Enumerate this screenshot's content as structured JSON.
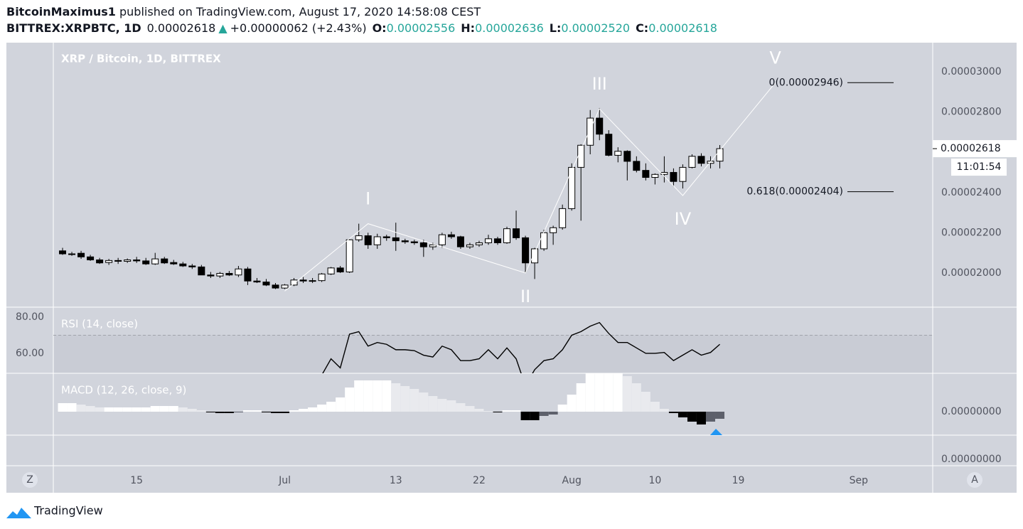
{
  "header": {
    "author": "BitcoinMaximus1",
    "published": " published on TradingView.com, August 17, 2020 14:58:08 CEST",
    "symbol": "BITTREX:XRPBTC, 1D",
    "last": "0.00002618",
    "arrow": "▲",
    "change": "+0.00000062 (+2.43%)",
    "ohlc": [
      {
        "key": "O:",
        "value": "0.00002556"
      },
      {
        "key": "H:",
        "value": "0.00002636"
      },
      {
        "key": "L:",
        "value": "0.00002520"
      },
      {
        "key": "C:",
        "value": "0.00002618"
      }
    ]
  },
  "ui": {
    "left_button": "Z",
    "right_button": "A",
    "brand": "TradingView"
  },
  "chart_data": {
    "type": "candlestick",
    "title": "XRP / Bitcoin, 1D, BITTREX",
    "x": [
      "2020-06-07",
      "2020-06-08",
      "2020-06-09",
      "2020-06-10",
      "2020-06-11",
      "2020-06-12",
      "2020-06-13",
      "2020-06-14",
      "2020-06-15",
      "2020-06-16",
      "2020-06-17",
      "2020-06-18",
      "2020-06-19",
      "2020-06-20",
      "2020-06-21",
      "2020-06-22",
      "2020-06-23",
      "2020-06-24",
      "2020-06-25",
      "2020-06-26",
      "2020-06-27",
      "2020-06-28",
      "2020-06-29",
      "2020-06-30",
      "2020-07-01",
      "2020-07-02",
      "2020-07-03",
      "2020-07-04",
      "2020-07-05",
      "2020-07-06",
      "2020-07-07",
      "2020-07-08",
      "2020-07-09",
      "2020-07-10",
      "2020-07-11",
      "2020-07-12",
      "2020-07-13",
      "2020-07-14",
      "2020-07-15",
      "2020-07-16",
      "2020-07-17",
      "2020-07-18",
      "2020-07-19",
      "2020-07-20",
      "2020-07-21",
      "2020-07-22",
      "2020-07-23",
      "2020-07-24",
      "2020-07-25",
      "2020-07-26",
      "2020-07-27",
      "2020-07-28",
      "2020-07-29",
      "2020-07-30",
      "2020-07-31",
      "2020-08-01",
      "2020-08-02",
      "2020-08-03",
      "2020-08-04",
      "2020-08-05",
      "2020-08-06",
      "2020-08-07",
      "2020-08-08",
      "2020-08-09",
      "2020-08-10",
      "2020-08-11",
      "2020-08-12",
      "2020-08-13",
      "2020-08-14",
      "2020-08-15",
      "2020-08-16",
      "2020-08-17"
    ],
    "open": [
      2.11e-05,
      2.095e-05,
      2.098e-05,
      2.08e-05,
      2.065e-05,
      2.052e-05,
      2.062e-05,
      2.058e-05,
      2.065e-05,
      2.06e-05,
      2.045e-05,
      2.07e-05,
      2.052e-05,
      2.045e-05,
      2.035e-05,
      2.03e-05,
      1.99e-05,
      1.985e-05,
      1.998e-05,
      1.99e-05,
      2.02e-05,
      1.96e-05,
      1.955e-05,
      1.94e-05,
      1.925e-05,
      1.94e-05,
      1.965e-05,
      1.96e-05,
      1.962e-05,
      1.995e-05,
      2.025e-05,
      2.005e-05,
      2.165e-05,
      2.185e-05,
      2.14e-05,
      2.18e-05,
      2.175e-05,
      2.16e-05,
      2.155e-05,
      2.15e-05,
      2.13e-05,
      2.14e-05,
      2.19e-05,
      2.18e-05,
      2.13e-05,
      2.14e-05,
      2.15e-05,
      2.17e-05,
      2.15e-05,
      2.22e-05,
      2.175e-05,
      2.05e-05,
      2.12e-05,
      2.2e-05,
      2.225e-05,
      2.32e-05,
      2.525e-05,
      2.635e-05,
      2.77e-05,
      2.69e-05,
      2.585e-05,
      2.605e-05,
      2.555e-05,
      2.51e-05,
      2.475e-05,
      2.49e-05,
      2.5e-05,
      2.455e-05,
      2.525e-05,
      2.58e-05,
      2.545e-05,
      2.556e-05
    ],
    "high": [
      2.125e-05,
      2.105e-05,
      2.11e-05,
      2.09e-05,
      2.075e-05,
      2.07e-05,
      2.075e-05,
      2.072e-05,
      2.08e-05,
      2.075e-05,
      2.1e-05,
      2.08e-05,
      2.065e-05,
      2.055e-05,
      2.045e-05,
      2.04e-05,
      2.005e-05,
      2.005e-05,
      2.01e-05,
      2.035e-05,
      2.03e-05,
      1.975e-05,
      1.97e-05,
      1.95e-05,
      1.945e-05,
      1.975e-05,
      1.98e-05,
      1.975e-05,
      2e-05,
      2.03e-05,
      2.035e-05,
      2.17e-05,
      2.245e-05,
      2.2e-05,
      2.195e-05,
      2.19e-05,
      2.25e-05,
      2.17e-05,
      2.165e-05,
      2.165e-05,
      2.15e-05,
      2.2e-05,
      2.205e-05,
      2.185e-05,
      2.15e-05,
      2.16e-05,
      2.19e-05,
      2.18e-05,
      2.23e-05,
      2.31e-05,
      2.185e-05,
      2.125e-05,
      2.215e-05,
      2.235e-05,
      2.34e-05,
      2.545e-05,
      2.64e-05,
      2.81e-05,
      2.82e-05,
      2.71e-05,
      2.625e-05,
      2.61e-05,
      2.58e-05,
      2.545e-05,
      2.495e-05,
      2.58e-05,
      2.52e-05,
      2.54e-05,
      2.59e-05,
      2.595e-05,
      2.58e-05,
      2.636e-05
    ],
    "low": [
      2.09e-05,
      2.085e-05,
      2.07e-05,
      2.06e-05,
      2.045e-05,
      2.04e-05,
      2.045e-05,
      2.05e-05,
      2.05e-05,
      2.04e-05,
      2.04e-05,
      2.045e-05,
      2.04e-05,
      2.03e-05,
      2.02e-05,
      1.99e-05,
      1.975e-05,
      1.975e-05,
      1.985e-05,
      1.98e-05,
      1.94e-05,
      1.95e-05,
      1.935e-05,
      1.92e-05,
      1.92e-05,
      1.935e-05,
      1.95e-05,
      1.95e-05,
      1.955e-05,
      1.99e-05,
      2e-05,
      2e-05,
      2.155e-05,
      2.12e-05,
      2.12e-05,
      2.16e-05,
      2.11e-05,
      2.145e-05,
      2.14e-05,
      2.08e-05,
      2.115e-05,
      2.125e-05,
      2.17e-05,
      2.12e-05,
      2.12e-05,
      2.13e-05,
      2.14e-05,
      2.14e-05,
      2.145e-05,
      2.165e-05,
      2e-05,
      1.97e-05,
      2.11e-05,
      2.14e-05,
      2.215e-05,
      2.31e-05,
      2.26e-05,
      2.59e-05,
      2.66e-05,
      2.58e-05,
      2.55e-05,
      2.46e-05,
      2.5e-05,
      2.46e-05,
      2.44e-05,
      2.45e-05,
      2.43e-05,
      2.42e-05,
      2.52e-05,
      2.53e-05,
      2.52e-05,
      2.52e-05
    ],
    "close": [
      2.095e-05,
      2.092e-05,
      2.08e-05,
      2.065e-05,
      2.05e-05,
      2.062e-05,
      2.058e-05,
      2.065e-05,
      2.06e-05,
      2.045e-05,
      2.07e-05,
      2.05e-05,
      2.045e-05,
      2.035e-05,
      2.03e-05,
      1.99e-05,
      1.985e-05,
      1.998e-05,
      1.99e-05,
      2.02e-05,
      1.96e-05,
      1.955e-05,
      1.94e-05,
      1.925e-05,
      1.94e-05,
      1.965e-05,
      1.96e-05,
      1.962e-05,
      1.995e-05,
      2.025e-05,
      2.005e-05,
      2.165e-05,
      2.185e-05,
      2.14e-05,
      2.18e-05,
      2.175e-05,
      2.16e-05,
      2.155e-05,
      2.15e-05,
      2.13e-05,
      2.14e-05,
      2.19e-05,
      2.18e-05,
      2.13e-05,
      2.14e-05,
      2.15e-05,
      2.17e-05,
      2.15e-05,
      2.22e-05,
      2.175e-05,
      2.05e-05,
      2.12e-05,
      2.2e-05,
      2.225e-05,
      2.32e-05,
      2.525e-05,
      2.635e-05,
      2.77e-05,
      2.69e-05,
      2.585e-05,
      2.605e-05,
      2.555e-05,
      2.51e-05,
      2.475e-05,
      2.49e-05,
      2.5e-05,
      2.455e-05,
      2.525e-05,
      2.58e-05,
      2.545e-05,
      2.556e-05,
      2.618e-05
    ],
    "up_color": "#ffffff",
    "down_color": "#000000",
    "xlim": [
      "2020-06-06",
      "2020-09-09"
    ],
    "xticks": [
      {
        "value": "2020-06-15",
        "label": "15"
      },
      {
        "value": "2020-07-01",
        "label": "Jul"
      },
      {
        "value": "2020-07-13",
        "label": "13"
      },
      {
        "value": "2020-07-22",
        "label": "22"
      },
      {
        "value": "2020-08-01",
        "label": "Aug"
      },
      {
        "value": "2020-08-10",
        "label": "10"
      },
      {
        "value": "2020-08-19",
        "label": "19"
      },
      {
        "value": "2020-09-01",
        "label": "Sep"
      }
    ],
    "ylim": [
      1.83e-05,
      3.145e-05
    ],
    "yticks": [
      {
        "value": 2e-05,
        "label": "0.00002000"
      },
      {
        "value": 2.2e-05,
        "label": "0.00002200"
      },
      {
        "value": 2.4e-05,
        "label": "0.00002400"
      },
      {
        "value": 2.6e-05,
        "label": "0.00002600"
      },
      {
        "value": 2.8e-05,
        "label": "0.00002800"
      },
      {
        "value": 3e-05,
        "label": "0.00003000"
      }
    ],
    "price_line": {
      "value": 2.618e-05,
      "label": "0.00002618"
    },
    "countdown": "11:01:54",
    "waves": {
      "x": [
        "2020-07-01",
        "2020-07-10",
        "2020-07-27",
        "2020-08-04",
        "2020-08-13",
        "2020-08-23"
      ],
      "y": [
        1.91e-05,
        2.245e-05,
        2e-05,
        2.816e-05,
        2.385e-05,
        2.946e-05
      ],
      "labels": [
        null,
        "I",
        "II",
        "III",
        "IV",
        "V"
      ],
      "color": "#ffffff"
    },
    "fib_levels": [
      {
        "value": 2.946e-05,
        "label": "0(0.00002946)"
      },
      {
        "value": 2.404e-05,
        "label": "0.618(0.00002404)"
      }
    ],
    "rsi": {
      "type": "line",
      "title": "RSI (14, close)",
      "color": "#000000",
      "values": [
        null,
        null,
        null,
        null,
        null,
        null,
        null,
        null,
        null,
        null,
        null,
        null,
        null,
        null,
        null,
        null,
        null,
        null,
        null,
        null,
        null,
        null,
        null,
        null,
        null,
        null,
        null,
        null,
        48,
        57,
        52,
        70.6,
        72,
        64,
        66,
        65,
        62,
        62,
        61.5,
        59,
        58,
        64,
        62,
        56,
        56,
        57,
        62,
        57,
        63,
        57,
        42,
        51,
        56,
        57,
        62,
        70,
        72,
        75,
        77,
        71,
        66,
        66,
        63,
        60,
        60,
        60.5,
        56,
        59,
        62,
        59,
        60.5,
        65
      ],
      "level": 70,
      "ylim": [
        49,
        85.5
      ],
      "yticks": [
        {
          "value": 80,
          "label": "80.00"
        },
        {
          "value": 60,
          "label": "60.00"
        }
      ]
    },
    "macd": {
      "type": "histogram",
      "title": "MACD (12, 26, close, 9)",
      "values": [
        1.2e-08,
        1.2e-08,
        1e-08,
        8e-09,
        6e-09,
        6e-09,
        6e-09,
        6e-09,
        6e-09,
        6e-09,
        8e-09,
        8e-09,
        8e-09,
        6e-09,
        4e-09,
        2e-09,
        -1e-09,
        -2e-09,
        -2e-09,
        -1e-09,
        2e-09,
        2e-09,
        -1e-09,
        -2e-09,
        -2e-09,
        2e-09,
        4e-09,
        6e-09,
        1e-08,
        1.4e-08,
        2e-08,
        3.4e-08,
        4.4e-08,
        4.4e-08,
        4.4e-08,
        4.4e-08,
        4e-08,
        3.6e-08,
        3.2e-08,
        2.7e-08,
        2.2e-08,
        1.8e-08,
        1.6e-08,
        1.2e-08,
        8e-09,
        4e-09,
        1e-09,
        -1e-09,
        2e-09,
        2e-09,
        -1.2e-08,
        -1.2e-08,
        -6e-09,
        -4e-09,
        1e-08,
        2.4e-08,
        4e-08,
        5.4e-08,
        5.4e-08,
        5.4e-08,
        5.4e-08,
        5e-08,
        4e-08,
        2.8e-08,
        1.4e-08,
        4e-09,
        -2e-09,
        -8e-09,
        -1.4e-08,
        -1.8e-08,
        -1.4e-08,
        -1e-08
      ],
      "colors": [
        "#ffffff",
        "#e9eaee",
        "#000000",
        "#5d606b"
      ],
      "ylim": [
        -3.3e-08,
        5.4e-08
      ],
      "yticks": [
        {
          "value": 0,
          "label": "0.00000000"
        }
      ]
    },
    "lower_pane": {
      "yticks": [
        {
          "value": 0,
          "label": "0.00000000"
        }
      ]
    }
  }
}
